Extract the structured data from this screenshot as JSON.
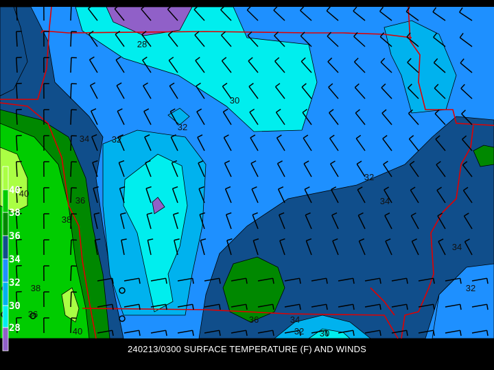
{
  "caption": "240213/0300 SURFACE TEMPERATURE (F) AND WINDS",
  "legend": {
    "labels": [
      "40",
      "38",
      "36",
      "34",
      "32",
      "30",
      "28"
    ],
    "colors": [
      "#aaff44",
      "#00cc00",
      "#008800",
      "#104e8b",
      "#1e90ff",
      "#00b2ee",
      "#00eeee",
      "#9060c8"
    ]
  },
  "contour_labels": [
    "28",
    "30",
    "32",
    "32",
    "34",
    "40",
    "36",
    "38",
    "38",
    "36",
    "40",
    "32",
    "34",
    "34",
    "32",
    "36",
    "34",
    "32",
    "30"
  ],
  "colors": {
    "boundary": "#e00000",
    "wind_barb": "#000000",
    "contour_line": "#000000"
  }
}
